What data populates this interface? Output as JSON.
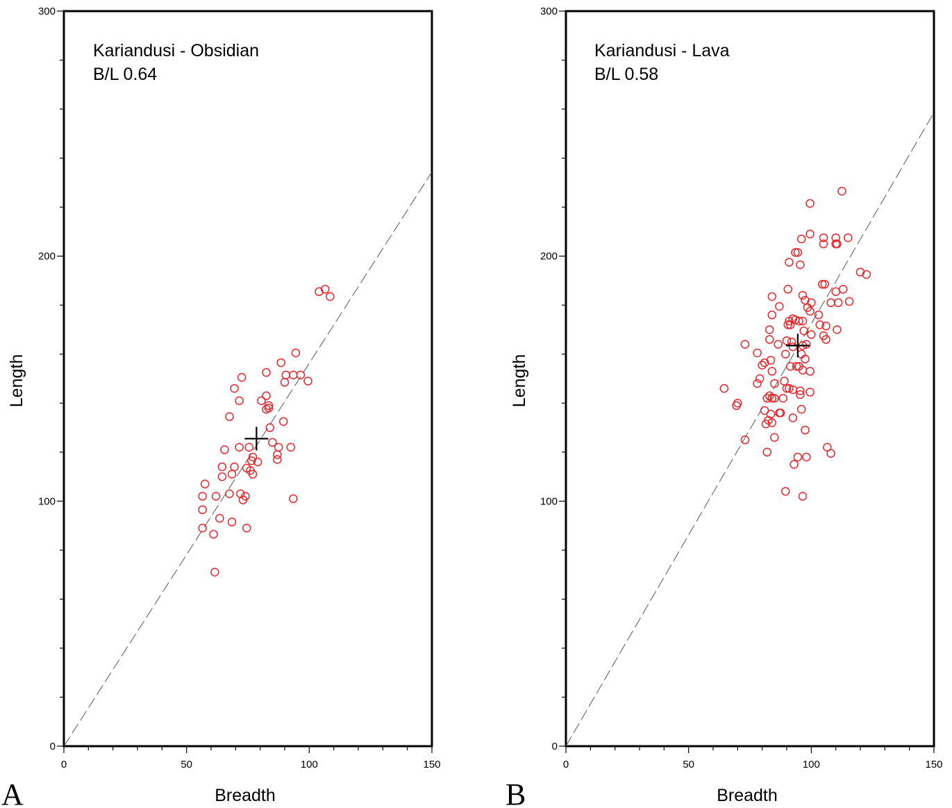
{
  "chart_data": [
    {
      "type": "scatter",
      "panel_label": "A",
      "annotation_lines": [
        "Kariandusi - Obsidian",
        "B/L 0.64"
      ],
      "xlabel": "Breadth",
      "ylabel": "Length",
      "xlim": [
        0,
        150
      ],
      "ylim": [
        0,
        300
      ],
      "x_ticks": [
        "0",
        "50",
        "100",
        "150"
      ],
      "y_ticks": [
        "0",
        "100",
        "200",
        "300"
      ],
      "grid": false,
      "legend": "none",
      "marker_color": "#e8262b",
      "reference_line": {
        "style": "dashed",
        "color": "#555555",
        "slope": 1.5625
      },
      "mean_marker": {
        "x": 78.5,
        "y": 125.5
      },
      "series": [
        {
          "x": [
            104,
            106.5,
            108.5,
            94.5,
            88.5,
            72.5,
            82.5,
            90.5,
            90,
            93.5,
            96.5,
            99.5,
            69.5,
            71.5,
            82.5,
            80.5,
            83.5,
            83.5,
            82.5,
            67.5,
            89.5,
            84,
            85,
            92.5,
            75.5,
            87.5,
            65.5,
            71.5,
            64.5,
            77,
            76.5,
            79,
            87,
            87,
            69.5,
            74.5,
            76,
            77,
            64.5,
            68.5,
            57.5,
            62,
            56.5,
            67.5,
            72,
            74,
            73,
            93.5,
            56.5,
            63.5,
            68.5,
            56.5,
            61,
            74.5,
            61.5
          ],
          "y": [
            185.5,
            186.5,
            183.5,
            160.5,
            156.5,
            150.5,
            152.5,
            151.5,
            148.5,
            151.5,
            151.5,
            149,
            146,
            141,
            143,
            141,
            139,
            138,
            137.5,
            134.5,
            132.5,
            130,
            124,
            122,
            122,
            122,
            121,
            122,
            114,
            118,
            116.5,
            116,
            117,
            119,
            114,
            113.5,
            112.5,
            111,
            110,
            111,
            107,
            102,
            102,
            103,
            103,
            102,
            100.5,
            101,
            96.5,
            93,
            91.5,
            89,
            86.5,
            89,
            71
          ]
        }
      ]
    },
    {
      "type": "scatter",
      "panel_label": "B",
      "annotation_lines": [
        "Kariandusi - Lava",
        "B/L 0.58"
      ],
      "xlabel": "Breadth",
      "ylabel": "Length",
      "xlim": [
        0,
        150
      ],
      "ylim": [
        0,
        300
      ],
      "x_ticks": [
        "0",
        "50",
        "100",
        "150"
      ],
      "y_ticks": [
        "0",
        "100",
        "200",
        "300"
      ],
      "grid": false,
      "legend": "none",
      "marker_color": "#e8262b",
      "reference_line": {
        "style": "dashed",
        "color": "#555555",
        "slope": 1.7241
      },
      "mean_marker": {
        "x": 94.5,
        "y": 163.5
      },
      "series": [
        {
          "x": [
            112.5,
            99.5,
            99.5,
            105,
            110,
            115,
            96,
            110,
            93.5,
            94.5,
            105,
            110.5,
            91,
            95.5,
            110,
            120,
            122.5,
            104.5,
            105.5,
            90.5,
            113,
            84,
            96.5,
            97.5,
            100,
            108,
            111,
            115.5,
            87,
            98.5,
            99.5,
            103,
            84,
            93.5,
            91,
            92.5,
            95,
            96.5,
            91.5,
            97,
            106,
            90.5,
            103.5,
            100,
            110.5,
            83,
            83,
            90,
            105,
            106,
            98,
            96.5,
            86.5,
            92,
            73,
            78,
            92.5,
            89.5,
            83.5,
            96,
            81,
            97.5,
            80,
            91.5,
            94,
            95,
            96.5,
            99.5,
            84,
            89,
            79,
            90,
            85,
            78,
            64.5,
            91,
            92.5,
            99.5,
            83,
            82,
            85,
            95.5,
            88.5,
            84,
            70,
            69.5,
            87,
            87.5,
            81,
            83.5,
            96,
            97.5,
            92.5,
            82.5,
            84,
            73,
            82,
            81.5,
            85,
            94.5,
            89.5,
            96.5,
            93,
            95.5,
            98,
            108,
            106.5
          ],
          "y": [
            226.5,
            221.5,
            209,
            207.5,
            207.5,
            207.5,
            207,
            205,
            201.5,
            201.5,
            205,
            205,
            197.5,
            196.5,
            185.5,
            193.5,
            192.5,
            188.5,
            188.5,
            186.5,
            186.5,
            183.5,
            184,
            182,
            181,
            181,
            181,
            181.5,
            179.5,
            179,
            177.5,
            176,
            176,
            174,
            173.5,
            174.5,
            173.5,
            173.5,
            172,
            169.5,
            171.5,
            172,
            172,
            168,
            170,
            170,
            166,
            165.5,
            167.5,
            166,
            164,
            163.5,
            164,
            165,
            164,
            160.5,
            163,
            160,
            157.5,
            160,
            156.5,
            158,
            155.5,
            155,
            155,
            155,
            153.5,
            153,
            153,
            149,
            150,
            146,
            148,
            148,
            146,
            146,
            145.5,
            144.5,
            143,
            142,
            142,
            143.5,
            142,
            142,
            140,
            139,
            136,
            136,
            137,
            135.5,
            137.5,
            129,
            134,
            133,
            132,
            125,
            120,
            131.5,
            126,
            118,
            104,
            102,
            115,
            145,
            118,
            119.5,
            122
          ]
        }
      ]
    }
  ]
}
